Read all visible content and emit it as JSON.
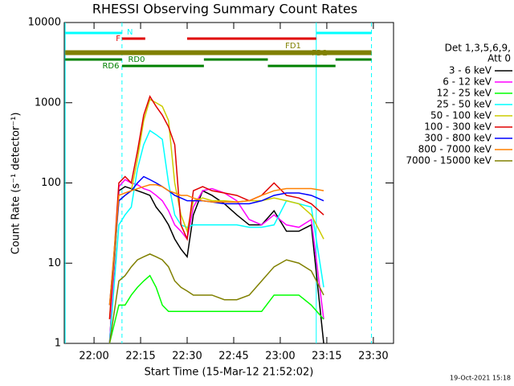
{
  "chart_data": {
    "type": "line",
    "title": "RHESSI Observing Summary Count Rates",
    "x_label": "Start Time (15-Mar-12 21:52:02)",
    "y_label": "Count Rate (s⁻¹ detector⁻¹)",
    "footer": "19-Oct-2021 15:18",
    "legend_title": [
      "Det 1,3,5,6,9,",
      "Att 0"
    ],
    "log_y": true,
    "xlim": [
      -9.6,
      96.5
    ],
    "xticks": [
      {
        "value": 0,
        "label": "22:00"
      },
      {
        "value": 15,
        "label": "22:15"
      },
      {
        "value": 30,
        "label": "22:30"
      },
      {
        "value": 45,
        "label": "22:45"
      },
      {
        "value": 60,
        "label": "23:00"
      },
      {
        "value": 75,
        "label": "23:15"
      },
      {
        "value": 90,
        "label": "23:30"
      }
    ],
    "ylim": [
      1,
      10000
    ],
    "yticks": [
      1,
      10,
      100,
      1000,
      10000
    ],
    "x": [
      5,
      8,
      10,
      12,
      14,
      16,
      18,
      20,
      22,
      24,
      26,
      28,
      30,
      32,
      35,
      38,
      42,
      46,
      50,
      54,
      58,
      62,
      66,
      70,
      74
    ],
    "series": [
      {
        "name": "3 - 6 keV",
        "color": "#000000",
        "values": [
          1,
          80,
          90,
          85,
          80,
          75,
          70,
          50,
          40,
          30,
          20,
          15,
          12,
          40,
          80,
          70,
          55,
          40,
          30,
          30,
          45,
          25,
          25,
          30,
          1
        ]
      },
      {
        "name": "6 - 12 keV",
        "color": "#ff00ff",
        "values": [
          1,
          90,
          110,
          100,
          95,
          85,
          80,
          70,
          60,
          45,
          30,
          25,
          20,
          50,
          80,
          85,
          75,
          60,
          35,
          30,
          40,
          30,
          28,
          35,
          2
        ]
      },
      {
        "name": "12 - 25 keV",
        "color": "#00ff00",
        "values": [
          1,
          3,
          3,
          4,
          5,
          6,
          7,
          5,
          3,
          2.5,
          2.5,
          2.5,
          2.5,
          2.5,
          2.5,
          2.5,
          2.5,
          2.5,
          2.5,
          2.5,
          4,
          4,
          4,
          3,
          2
        ]
      },
      {
        "name": "25 - 50 keV",
        "color": "#00ffff",
        "values": [
          1,
          30,
          40,
          50,
          150,
          300,
          450,
          400,
          350,
          100,
          40,
          30,
          28,
          30,
          30,
          30,
          30,
          30,
          28,
          28,
          30,
          60,
          55,
          50,
          5
        ]
      },
      {
        "name": "50 - 100 keV",
        "color": "#cccc00",
        "values": [
          2,
          60,
          70,
          80,
          200,
          600,
          1100,
          1000,
          900,
          600,
          100,
          40,
          25,
          60,
          65,
          60,
          60,
          58,
          60,
          60,
          65,
          60,
          55,
          40,
          20
        ]
      },
      {
        "name": "100 - 300 keV",
        "color": "#e00000",
        "values": [
          2,
          100,
          120,
          100,
          250,
          700,
          1200,
          900,
          700,
          500,
          300,
          30,
          20,
          80,
          90,
          80,
          75,
          70,
          60,
          70,
          100,
          70,
          65,
          55,
          40
        ]
      },
      {
        "name": "300 - 800 keV",
        "color": "#0000ff",
        "values": [
          3,
          60,
          70,
          80,
          100,
          120,
          110,
          100,
          90,
          80,
          70,
          65,
          60,
          60,
          60,
          58,
          55,
          55,
          55,
          60,
          70,
          75,
          75,
          70,
          60
        ]
      },
      {
        "name": "800 - 7000 keV",
        "color": "#ff8000",
        "values": [
          3,
          70,
          75,
          80,
          85,
          90,
          95,
          95,
          90,
          80,
          75,
          70,
          70,
          65,
          60,
          58,
          58,
          58,
          60,
          70,
          80,
          85,
          85,
          85,
          80
        ]
      },
      {
        "name": "7000 - 15000 keV",
        "color": "#808000",
        "values": [
          1,
          6,
          7,
          9,
          11,
          12,
          13,
          12,
          11,
          9,
          6,
          5,
          4.5,
          4,
          4,
          4,
          3.5,
          3.5,
          4,
          6,
          9,
          11,
          10,
          8,
          4
        ]
      }
    ],
    "flags": [
      {
        "label": "N",
        "color": "#00ffff",
        "segments": [
          [
            -9.3,
            9
          ],
          [
            71.6,
            89.4
          ]
        ]
      },
      {
        "label": "F",
        "color": "#e00000",
        "segments": [
          [
            9,
            16.5
          ],
          [
            30,
            71.6
          ]
        ]
      },
      {
        "label": "FD1",
        "color": "#808000",
        "segments": [
          [
            -9.3,
            89.4
          ]
        ]
      },
      {
        "label": "FD2",
        "color": "#808000",
        "segments": [
          [
            -9.3,
            89.4
          ]
        ]
      },
      {
        "label": "RD0",
        "color": "#008000",
        "segments": [
          [
            -9.3,
            9
          ],
          [
            35.4,
            56
          ],
          [
            77.8,
            89.4
          ]
        ]
      },
      {
        "label": "RD6",
        "color": "#008000",
        "segments": [
          [
            9,
            35.4
          ],
          [
            56,
            77.8
          ]
        ]
      }
    ],
    "markers": {
      "color": "#00ffff",
      "solid": [
        -9.3,
        71.6
      ],
      "dashed": [
        9,
        89.4
      ]
    }
  }
}
